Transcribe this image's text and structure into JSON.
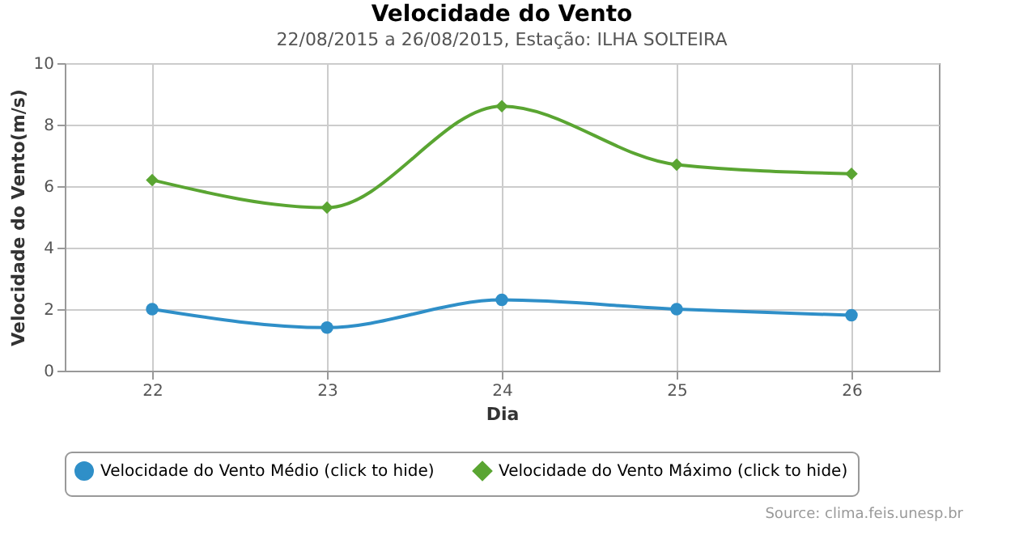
{
  "chart_data": {
    "type": "line",
    "title": "Velocidade do Vento",
    "subtitle": "22/08/2015 a 26/08/2015, Estação: ILHA SOLTEIRA",
    "xlabel": "Dia",
    "ylabel": "Velocidade do Vento(m/s)",
    "categories": [
      "22",
      "23",
      "24",
      "25",
      "26"
    ],
    "series": [
      {
        "name": "Velocidade do Vento Médio (click to hide)",
        "color": "#2f8fc8",
        "marker": "circle",
        "values": [
          2.0,
          1.4,
          2.3,
          2.0,
          1.8
        ]
      },
      {
        "name": "Velocidade do Vento Máximo (click to hide)",
        "color": "#5aa532",
        "marker": "diamond",
        "values": [
          6.2,
          5.3,
          8.6,
          6.7,
          6.4
        ]
      }
    ],
    "ylim": [
      0,
      10
    ],
    "yticks": [
      0,
      2,
      4,
      6,
      8,
      10
    ],
    "grid": true,
    "legend": "bottom",
    "annotations": [
      "Source: clima.feis.unesp.br"
    ]
  }
}
